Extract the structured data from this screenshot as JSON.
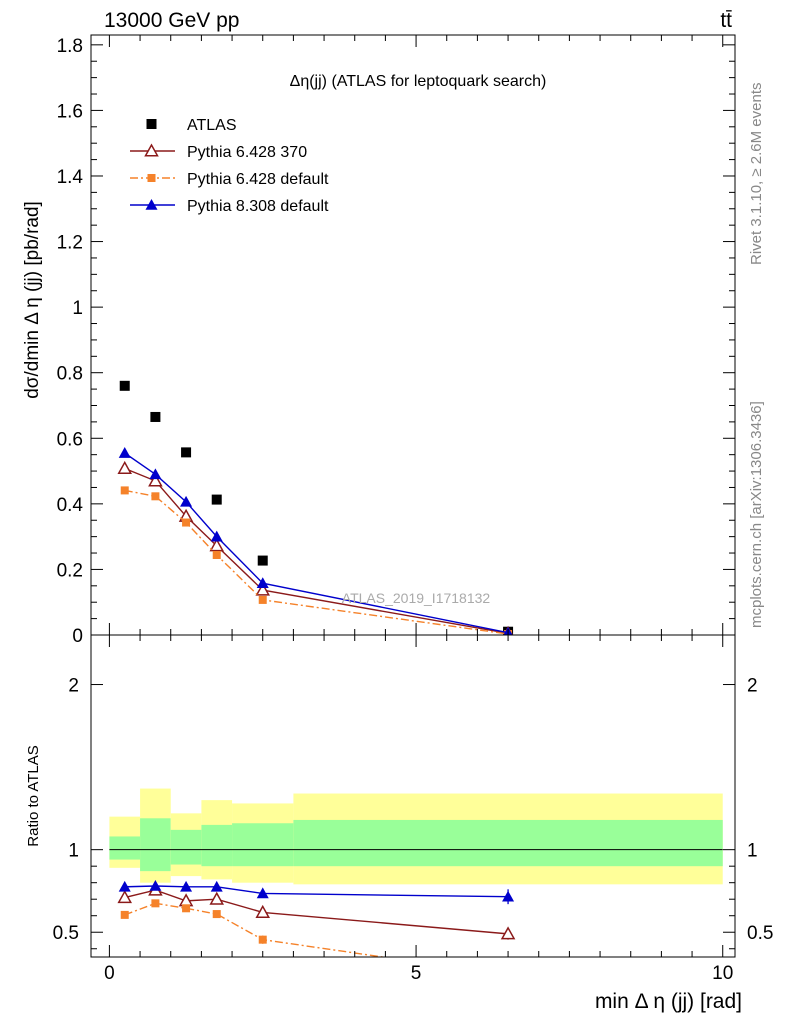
{
  "header": {
    "energy_label": "13000 GeV pp",
    "process_label": "tt̄"
  },
  "side_labels": {
    "rivet": "Rivet 3.1.10, ≥ 2.6M events",
    "mcplots": "mcplots.cern.ch [arXiv:1306.3436]"
  },
  "chart_data": [
    {
      "type": "scatter",
      "title": "Δη(jj) (ATLAS for leptoquark search)",
      "watermark": "ATLAS_2019_I1718132",
      "ylabel": "dσ/dmin Δ η (jj) [pb/rad]",
      "xlabel": "",
      "xlim": [
        -0.3,
        10.2
      ],
      "ylim": [
        0,
        1.83
      ],
      "legend_position": "top-left",
      "yticks": [
        0,
        0.2,
        0.4,
        0.6,
        0.8,
        1,
        1.2,
        1.4,
        1.6,
        1.8
      ],
      "ytick_labels": [
        "0",
        "0.2",
        "0.4",
        "0.6",
        "0.8",
        "1",
        "1.2",
        "1.4",
        "1.6",
        "1.8"
      ],
      "series": [
        {
          "name": "ATLAS",
          "style": "data",
          "color": "#000000",
          "x": [
            0.25,
            0.75,
            1.25,
            1.75,
            2.5,
            6.5
          ],
          "y": [
            0.76,
            0.665,
            0.557,
            0.413,
            0.227,
            0.01
          ],
          "err": [
            0.012,
            0.011,
            0.01,
            0.008,
            0.006,
            0.002
          ]
        },
        {
          "name": "Pythia 6.428 370",
          "style": "open-triangle-solid",
          "color": "#8b1a1a",
          "x": [
            0.25,
            0.75,
            1.25,
            1.75,
            2.5,
            6.5
          ],
          "y": [
            0.508,
            0.47,
            0.362,
            0.272,
            0.137,
            0.005
          ],
          "err": [
            0.01,
            0.012,
            0.01,
            0.009,
            0.005,
            0.001
          ]
        },
        {
          "name": "Pythia 6.428 default",
          "style": "square-dashdot",
          "color": "#f5822a",
          "x": [
            0.25,
            0.75,
            1.25,
            1.75,
            2.5,
            6.5
          ],
          "y": [
            0.441,
            0.423,
            0.343,
            0.244,
            0.107,
            0.003
          ],
          "err": [
            0.008,
            0.009,
            0.009,
            0.008,
            0.004,
            0.001
          ]
        },
        {
          "name": "Pythia 8.308 default",
          "style": "filled-triangle-solid",
          "color": "#0000cc",
          "x": [
            0.25,
            0.75,
            1.25,
            1.75,
            2.5,
            6.5
          ],
          "y": [
            0.555,
            0.49,
            0.406,
            0.3,
            0.158,
            0.007
          ],
          "err": [
            0.012,
            0.012,
            0.01,
            0.009,
            0.005,
            0.001
          ]
        }
      ]
    },
    {
      "type": "line",
      "title": "",
      "xlabel": "min Δ η (jj) [rad]",
      "ylabel": "Ratio to ATLAS",
      "xlim": [
        -0.3,
        10.2
      ],
      "ylim": [
        0.35,
        2.3
      ],
      "xticks": [
        0,
        5,
        10
      ],
      "xtick_labels": [
        "0",
        "5",
        "10"
      ],
      "yticks": [
        0.5,
        1,
        2
      ],
      "ytick_labels": [
        "0.5",
        "1",
        "2"
      ],
      "reference_line": 1,
      "bands": {
        "bin_edges": [
          0,
          0.5,
          1,
          1.5,
          2,
          3,
          10
        ],
        "green_upper": [
          1.08,
          1.19,
          1.12,
          1.15,
          1.16,
          1.18
        ],
        "green_lower": [
          0.94,
          0.87,
          0.91,
          0.9,
          0.9,
          0.9
        ],
        "yellow_upper": [
          1.2,
          1.37,
          1.22,
          1.3,
          1.28,
          1.34
        ],
        "yellow_lower": [
          0.89,
          0.8,
          0.84,
          0.82,
          0.8,
          0.79
        ]
      },
      "series": [
        {
          "name": "Pythia 6.428 370",
          "color": "#8b1a1a",
          "style": "open-triangle-solid",
          "x": [
            0.25,
            0.75,
            1.25,
            1.75,
            2.5,
            6.5
          ],
          "y": [
            0.71,
            0.755,
            0.69,
            0.7,
            0.62,
            0.49
          ],
          "err": [
            0.015,
            0.015,
            0.02,
            0.02,
            0.02,
            0.035
          ]
        },
        {
          "name": "Pythia 6.428 default",
          "color": "#f5822a",
          "style": "square-dashdot",
          "x": [
            0.25,
            0.75,
            1.25,
            1.75,
            2.5,
            6.5
          ],
          "y": [
            0.605,
            0.675,
            0.645,
            0.61,
            0.455,
            0.24
          ],
          "err": [
            0.012,
            0.015,
            0.02,
            0.02,
            0.025,
            0.03
          ]
        },
        {
          "name": "Pythia 8.308 default",
          "color": "#0000cc",
          "style": "filled-triangle-solid",
          "x": [
            0.25,
            0.75,
            1.25,
            1.75,
            2.5,
            6.5
          ],
          "y": [
            0.775,
            0.78,
            0.775,
            0.775,
            0.735,
            0.715
          ],
          "err": [
            0.015,
            0.02,
            0.02,
            0.02,
            0.025,
            0.045
          ]
        }
      ]
    }
  ]
}
